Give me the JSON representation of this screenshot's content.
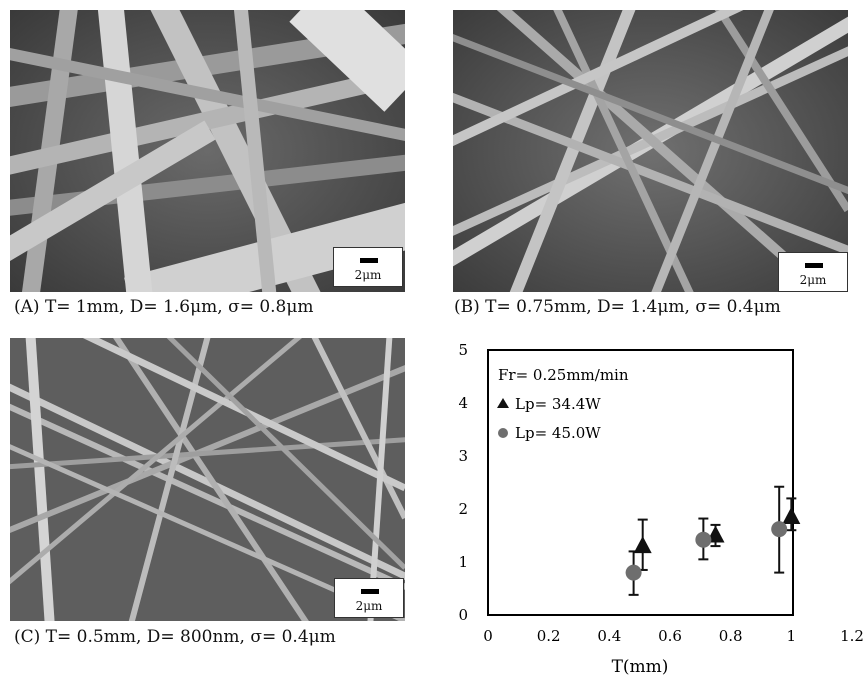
{
  "panels": [
    {
      "id": "A",
      "scale_label": "2μm",
      "caption": "(A) T= 1mm,  D= 1.6μm, σ= 0.8μm"
    },
    {
      "id": "B",
      "scale_label": "2μm",
      "caption": "(B) T= 0.75mm,  D= 1.4μm, σ= 0.4μm"
    },
    {
      "id": "C",
      "scale_label": "2μm",
      "caption": "(C) T= 0.5mm,  D= 800nm, σ= 0.4μm"
    }
  ],
  "chart_data": {
    "type": "scatter",
    "title": "",
    "xlabel": "T(mm)",
    "ylabel": "",
    "xlim": [
      0,
      1.2
    ],
    "ylim": [
      0,
      5
    ],
    "xticks": [
      "0",
      "0.2",
      "0.4",
      "0.6",
      "0.8",
      "1",
      "1.2"
    ],
    "yticks": [
      "0",
      "1",
      "2",
      "3",
      "4",
      "5"
    ],
    "annotation": "Fr= 0.25mm/min",
    "grid": false,
    "legend_position": "top-left",
    "series": [
      {
        "name": "Lp= 34.4W",
        "marker": "triangle",
        "points": [
          {
            "x": 0.51,
            "y": 1.3,
            "err_low": 0.85,
            "err_high": 1.8
          },
          {
            "x": 0.75,
            "y": 1.5,
            "err_low": 1.3,
            "err_high": 1.7
          },
          {
            "x": 1.0,
            "y": 1.85,
            "err_low": 1.6,
            "err_high": 2.2
          }
        ]
      },
      {
        "name": "Lp= 45.0W",
        "marker": "circle",
        "points": [
          {
            "x": 0.48,
            "y": 0.8,
            "err_low": 0.38,
            "err_high": 1.2
          },
          {
            "x": 0.71,
            "y": 1.42,
            "err_low": 1.05,
            "err_high": 1.82
          },
          {
            "x": 0.96,
            "y": 1.62,
            "err_low": 0.8,
            "err_high": 2.42
          }
        ]
      }
    ],
    "colors": {
      "triangle": "#111111",
      "circle": "#6e6e6e"
    }
  }
}
